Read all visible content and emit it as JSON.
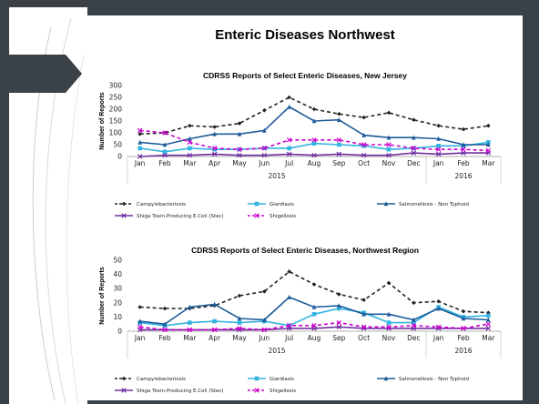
{
  "slide": {
    "title": "Enteric Diseases Northwest"
  },
  "chart_data": [
    {
      "type": "line",
      "title": "CDRSS Reports of Select Enteric Diseases, New Jersey",
      "ylabel": "Number of Reports",
      "xlabel": "",
      "ylim": [
        0,
        300
      ],
      "yticks": [
        0,
        50,
        100,
        150,
        200,
        250,
        300
      ],
      "categories": [
        "Jan",
        "Feb",
        "Mar",
        "Apr",
        "May",
        "Jun",
        "Jul",
        "Aug",
        "Sep",
        "Oct",
        "Nov",
        "Dec",
        "Jan",
        "Feb",
        "Mar"
      ],
      "groups": [
        {
          "label": "2015",
          "count": 12
        },
        {
          "label": "2016",
          "count": 3
        }
      ],
      "legend": "bottom",
      "grid": false,
      "series": [
        {
          "name": "Campylobacteriosis",
          "color": "#222222",
          "style": "dashed",
          "marker": "diamond",
          "values": [
            95,
            100,
            130,
            125,
            140,
            195,
            250,
            200,
            180,
            165,
            185,
            155,
            130,
            115,
            130
          ]
        },
        {
          "name": "Giardiasis",
          "color": "#33b3e0",
          "style": "solid",
          "marker": "square",
          "values": [
            35,
            20,
            35,
            30,
            30,
            35,
            35,
            55,
            50,
            45,
            30,
            35,
            45,
            45,
            60
          ]
        },
        {
          "name": "Salmonellosis - Non Typhoid",
          "color": "#1f5b99",
          "style": "solid",
          "marker": "triangle",
          "values": [
            60,
            50,
            75,
            95,
            95,
            110,
            210,
            150,
            155,
            90,
            80,
            80,
            75,
            50,
            50
          ]
        },
        {
          "name": "Shiga Toxin-Producing E.Coli (Stec)",
          "color": "#7030a0",
          "style": "solid",
          "marker": "x",
          "values": [
            0,
            5,
            5,
            10,
            5,
            5,
            10,
            5,
            10,
            5,
            5,
            15,
            10,
            15,
            15
          ]
        },
        {
          "name": "Shigellosis",
          "color": "#cc00cc",
          "style": "dashed",
          "marker": "x",
          "values": [
            110,
            100,
            60,
            35,
            30,
            35,
            70,
            70,
            70,
            50,
            50,
            35,
            30,
            30,
            25
          ]
        }
      ]
    },
    {
      "type": "line",
      "title": "CDRSS Reports of Select Enteric Diseases, Northwest Region",
      "ylabel": "Number of Reports",
      "xlabel": "",
      "ylim": [
        0,
        50
      ],
      "yticks": [
        0,
        10,
        20,
        30,
        40,
        50
      ],
      "categories": [
        "Jan",
        "Feb",
        "Mar",
        "Apr",
        "May",
        "Jun",
        "Jul",
        "Aug",
        "Sep",
        "Oct",
        "Nov",
        "Dec",
        "Jan",
        "Feb",
        "Mar"
      ],
      "groups": [
        {
          "label": "2015",
          "count": 12
        },
        {
          "label": "2016",
          "count": 3
        }
      ],
      "legend": "bottom",
      "grid": false,
      "series": [
        {
          "name": "Campylobacteriosis",
          "color": "#222222",
          "style": "dashed",
          "marker": "diamond",
          "values": [
            17,
            16,
            16,
            18,
            25,
            28,
            42,
            33,
            26,
            22,
            34,
            20,
            21,
            14,
            13
          ]
        },
        {
          "name": "Giardiasis",
          "color": "#33b3e0",
          "style": "solid",
          "marker": "square",
          "values": [
            6,
            4,
            6,
            7,
            6,
            7,
            4,
            12,
            16,
            13,
            6,
            6,
            17,
            10,
            11
          ]
        },
        {
          "name": "Salmonellosis - Non Typhoid",
          "color": "#1f5b99",
          "style": "solid",
          "marker": "triangle",
          "values": [
            7,
            5,
            17,
            19,
            9,
            8,
            24,
            17,
            18,
            12,
            12,
            8,
            16,
            9,
            8
          ]
        },
        {
          "name": "Shiga Toxin-Producing E.Coli (Stec)",
          "color": "#7030a0",
          "style": "solid",
          "marker": "x",
          "values": [
            1,
            1,
            1,
            1,
            1,
            1,
            2,
            2,
            3,
            2,
            2,
            2,
            2,
            2,
            2
          ]
        },
        {
          "name": "Shigellosis",
          "color": "#cc00cc",
          "style": "dashed",
          "marker": "x",
          "values": [
            3,
            1,
            1,
            1,
            2,
            1,
            4,
            4,
            6,
            3,
            3,
            4,
            3,
            2,
            5
          ]
        }
      ]
    }
  ]
}
